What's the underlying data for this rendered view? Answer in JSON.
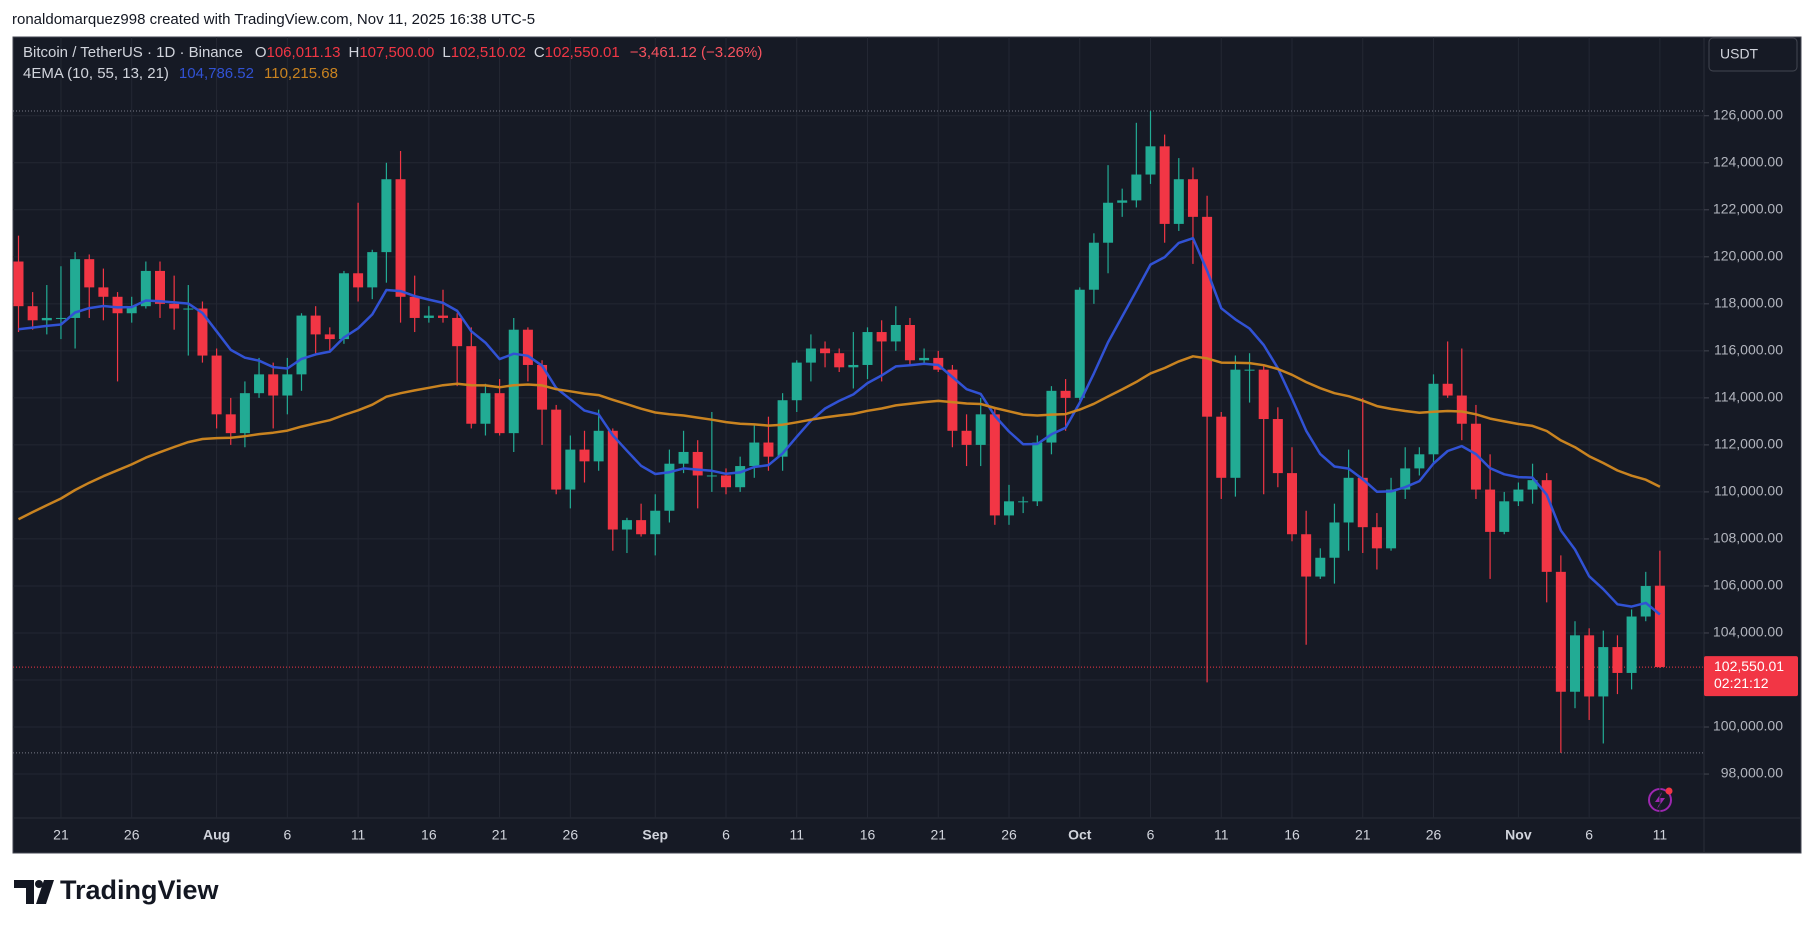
{
  "header": {
    "text": "ronaldomarquez998 created with TradingView.com, Nov 11, 2025 16:38 UTC-5"
  },
  "chart_data": {
    "type": "candlestick",
    "symbol": "Bitcoin / TetherUS · 1D · Binance",
    "ohlc_legend": [
      {
        "key": "O",
        "text": "106,011.13"
      },
      {
        "key": "H",
        "text": "107,500.00"
      },
      {
        "key": "L",
        "text": "102,510.02"
      },
      {
        "key": "C",
        "text": "102,550.01"
      }
    ],
    "change": "−3,461.12 (−3.26%)",
    "currency": "USDT",
    "up_color": "#22ab94",
    "down_color": "#f23645",
    "categories": [
      null,
      null,
      null,
      "21",
      null,
      null,
      null,
      null,
      "26",
      null,
      null,
      null,
      null,
      null,
      "Aug",
      null,
      null,
      null,
      null,
      "6",
      null,
      null,
      null,
      null,
      "11",
      null,
      null,
      null,
      null,
      "16",
      null,
      null,
      null,
      null,
      "21",
      null,
      null,
      null,
      null,
      "26",
      null,
      null,
      null,
      null,
      null,
      "Sep",
      null,
      null,
      null,
      null,
      "6",
      null,
      null,
      null,
      null,
      "11",
      null,
      null,
      null,
      null,
      "16",
      null,
      null,
      null,
      null,
      "21",
      null,
      null,
      null,
      null,
      "26",
      null,
      null,
      null,
      null,
      "Oct",
      null,
      null,
      null,
      null,
      "6",
      null,
      null,
      null,
      null,
      "11",
      null,
      null,
      null,
      null,
      "16",
      null,
      null,
      null,
      null,
      "21",
      null,
      null,
      null,
      null,
      "26",
      null,
      null,
      null,
      null,
      null,
      "Nov",
      null,
      null,
      null,
      null,
      "6",
      null,
      null,
      null,
      null,
      "11"
    ],
    "open": [
      119800,
      117900,
      117300,
      117400,
      117400,
      119900,
      118700,
      118300,
      117600,
      117900,
      119400,
      118000,
      117800,
      117800,
      115800,
      113300,
      112500,
      114200,
      115000,
      114100,
      115000,
      117500,
      116700,
      116500,
      119300,
      118700,
      120200,
      123300,
      118300,
      117400,
      117500,
      117400,
      116200,
      112900,
      114200,
      112500,
      116900,
      115400,
      113500,
      110100,
      111800,
      111300,
      112600,
      108400,
      108800,
      108200,
      109200,
      111200,
      111700,
      110700,
      110700,
      110200,
      111100,
      112100,
      111500,
      113900,
      115500,
      116100,
      115900,
      115300,
      115400,
      116800,
      116400,
      117100,
      115600,
      115700,
      115200,
      112600,
      112000,
      113300,
      109000,
      109600,
      109600,
      112100,
      114300,
      114000,
      118600,
      120600,
      122300,
      122400,
      123500,
      124700,
      121400,
      123300,
      121700,
      113200,
      110600,
      115200,
      115200,
      113100,
      110800,
      108200,
      106400,
      107200,
      108700,
      110600,
      108500,
      107600,
      110100,
      111000,
      111600,
      114600,
      114100,
      112900,
      110100,
      108300,
      109600,
      110100,
      110500,
      106600,
      101500,
      103900,
      101300,
      103400,
      102300,
      104700,
      106011.13
    ],
    "high": [
      120900,
      118500,
      118800,
      119600,
      120200,
      120100,
      119500,
      118500,
      118300,
      119800,
      119800,
      119200,
      118800,
      118100,
      116100,
      114000,
      114700,
      115700,
      115500,
      115700,
      117600,
      117900,
      117000,
      119400,
      122300,
      120300,
      124000,
      124500,
      119200,
      117900,
      118600,
      117600,
      117000,
      114600,
      114800,
      117400,
      117000,
      115600,
      113700,
      112400,
      112600,
      113500,
      112700,
      108900,
      109500,
      109900,
      111800,
      112600,
      112200,
      113400,
      111000,
      111500,
      112900,
      113200,
      114200,
      115600,
      116700,
      116400,
      116100,
      116800,
      117000,
      117300,
      117900,
      117400,
      116100,
      116000,
      115400,
      113300,
      114000,
      113600,
      110300,
      109800,
      112400,
      114500,
      114800,
      118700,
      121000,
      123900,
      122900,
      125700,
      126200,
      125200,
      124200,
      123800,
      122600,
      113400,
      115800,
      115900,
      115400,
      113600,
      111900,
      109200,
      107600,
      109500,
      111800,
      114000,
      109100,
      110600,
      111900,
      111900,
      115000,
      116400,
      116100,
      113700,
      111600,
      110000,
      110400,
      111200,
      110800,
      107300,
      104500,
      104200,
      104100,
      103900,
      105000,
      106600,
      107500
    ],
    "low": [
      116800,
      116900,
      116700,
      116500,
      116100,
      117400,
      117300,
      114700,
      117200,
      117800,
      117400,
      116900,
      115800,
      115500,
      112700,
      112000,
      111900,
      114000,
      112700,
      113300,
      114300,
      115900,
      116000,
      116300,
      118100,
      118200,
      118900,
      117200,
      116800,
      117200,
      117200,
      114500,
      112700,
      112400,
      112400,
      111700,
      114700,
      112000,
      109900,
      109300,
      110400,
      110900,
      107500,
      107400,
      108100,
      107300,
      108700,
      110800,
      109300,
      110000,
      109900,
      110000,
      110600,
      110900,
      110900,
      113400,
      114700,
      115300,
      115100,
      114400,
      114800,
      114700,
      116000,
      115400,
      115400,
      115100,
      111900,
      111100,
      111100,
      108600,
      108600,
      109100,
      109400,
      111600,
      112600,
      113900,
      118000,
      119300,
      121700,
      122100,
      123100,
      120600,
      121100,
      119700,
      101900,
      109700,
      109800,
      113800,
      109900,
      110200,
      107900,
      103500,
      106300,
      106100,
      107500,
      107400,
      106700,
      107500,
      109700,
      110700,
      111200,
      114000,
      112200,
      109700,
      106300,
      108200,
      109400,
      109500,
      105300,
      98900,
      100800,
      100300,
      99300,
      101400,
      101600,
      104500,
      102510.02
    ],
    "close": [
      117900,
      117300,
      117400,
      117400,
      119900,
      118700,
      118300,
      117600,
      117900,
      119400,
      118000,
      117800,
      117800,
      115800,
      113300,
      112500,
      114200,
      115000,
      114100,
      115000,
      117500,
      116700,
      116500,
      119300,
      118700,
      120200,
      123300,
      118300,
      117400,
      117500,
      117400,
      116200,
      112900,
      114200,
      112500,
      116900,
      115400,
      113500,
      110100,
      111800,
      111300,
      112600,
      108400,
      108800,
      108200,
      109200,
      111200,
      111700,
      110700,
      110700,
      110200,
      111100,
      112100,
      111500,
      113900,
      115500,
      116100,
      115900,
      115300,
      115400,
      116800,
      116400,
      117100,
      115600,
      115700,
      115200,
      112600,
      112000,
      113300,
      109000,
      109600,
      109600,
      112100,
      114300,
      114000,
      118600,
      120600,
      122300,
      122400,
      123500,
      124700,
      121400,
      123300,
      121700,
      113200,
      110600,
      115200,
      115200,
      113100,
      110800,
      108200,
      106400,
      107200,
      108700,
      110600,
      108500,
      107600,
      110100,
      111000,
      111600,
      114600,
      114100,
      112900,
      110100,
      108300,
      109600,
      110100,
      110500,
      106600,
      101500,
      103900,
      101300,
      103400,
      102300,
      104700,
      106000,
      102550.01
    ],
    "indicator": {
      "title": "4EMA (10, 55, 13, 21)",
      "lines": [
        {
          "color": "#3152d4",
          "value_label": "104,786.52",
          "values": [
            116920,
            116990,
            117060,
            117120,
            117630,
            117820,
            117910,
            117850,
            117860,
            118140,
            118110,
            118060,
            118010,
            117610,
            116830,
            116040,
            115710,
            115580,
            115310,
            115250,
            115660,
            115850,
            115970,
            116570,
            116960,
            117550,
            118590,
            118540,
            118330,
            118180,
            118040,
            117700,
            116830,
            116350,
            115650,
            115880,
            115790,
            115370,
            114420,
            113940,
            113460,
            113300,
            112410,
            111750,
            111110,
            110760,
            110840,
            111000,
            110950,
            110900,
            110770,
            110830,
            111060,
            111140,
            111640,
            112350,
            113030,
            113550,
            113870,
            114150,
            114630,
            114950,
            115340,
            115390,
            115450,
            115400,
            114890,
            114370,
            114170,
            113230,
            112570,
            112030,
            112040,
            112450,
            112730,
            113800,
            115040,
            116360,
            117460,
            118560,
            119670,
            119990,
            120590,
            120790,
            119410,
            117810,
            117340,
            116950,
            116250,
            115260,
            113970,
            112600,
            111610,
            111080,
            110990,
            110540,
            110010,
            110020,
            110200,
            110460,
            111210,
            111740,
            111950,
            111610,
            111010,
            110750,
            110630,
            110610,
            109880,
            108360,
            107550,
            106410,
            105860,
            105220,
            105120,
            105280,
            104786.52
          ]
        },
        {
          "color": "#c98320",
          "value_label": "110,215.68",
          "values": [
            108840,
            109140,
            109430,
            109720,
            110080,
            110390,
            110670,
            110920,
            111170,
            111460,
            111690,
            111910,
            112120,
            112250,
            112290,
            112300,
            112370,
            112460,
            112520,
            112610,
            112780,
            112920,
            113050,
            113270,
            113470,
            113710,
            114050,
            114200,
            114320,
            114430,
            114540,
            114600,
            114540,
            114530,
            114450,
            114540,
            114570,
            114530,
            114370,
            114280,
            114180,
            114120,
            113920,
            113730,
            113540,
            113380,
            113300,
            113250,
            113160,
            113070,
            112970,
            112900,
            112870,
            112820,
            112860,
            112960,
            113070,
            113170,
            113250,
            113320,
            113450,
            113550,
            113680,
            113750,
            113820,
            113870,
            113820,
            113760,
            113740,
            113570,
            113430,
            113290,
            113250,
            113290,
            113310,
            113500,
            113750,
            114060,
            114360,
            114680,
            115040,
            115270,
            115550,
            115770,
            115680,
            115500,
            115490,
            115480,
            115390,
            115230,
            114980,
            114670,
            114410,
            114200,
            114070,
            113880,
            113650,
            113530,
            113440,
            113370,
            113410,
            113440,
            113420,
            113300,
            113120,
            113000,
            112890,
            112810,
            112590,
            112190,
            111900,
            111520,
            111230,
            110910,
            110690,
            110520,
            110215.68
          ]
        }
      ]
    },
    "ylim": [
      96130,
      129350
    ],
    "yticks": [
      {
        "value": 98000,
        "label": "98,000.00"
      },
      {
        "value": 100000,
        "label": "100,000.00"
      },
      {
        "value": 102000,
        "label": "102,000.00"
      },
      {
        "value": 104000,
        "label": "104,000.00"
      },
      {
        "value": 106000,
        "label": "106,000.00"
      },
      {
        "value": 108000,
        "label": "108,000.00"
      },
      {
        "value": 110000,
        "label": "110,000.00"
      },
      {
        "value": 112000,
        "label": "112,000.00"
      },
      {
        "value": 114000,
        "label": "114,000.00"
      },
      {
        "value": 116000,
        "label": "116,000.00"
      },
      {
        "value": 118000,
        "label": "118,000.00"
      },
      {
        "value": 120000,
        "label": "120,000.00"
      },
      {
        "value": 122000,
        "label": "122,000.00"
      },
      {
        "value": 124000,
        "label": "124,000.00"
      },
      {
        "value": 126000,
        "label": "126,000.00"
      }
    ],
    "last_price_label": "102,550.01",
    "countdown": "02:21:12",
    "grid": true
  },
  "footer": {
    "logo": "TradingView"
  }
}
